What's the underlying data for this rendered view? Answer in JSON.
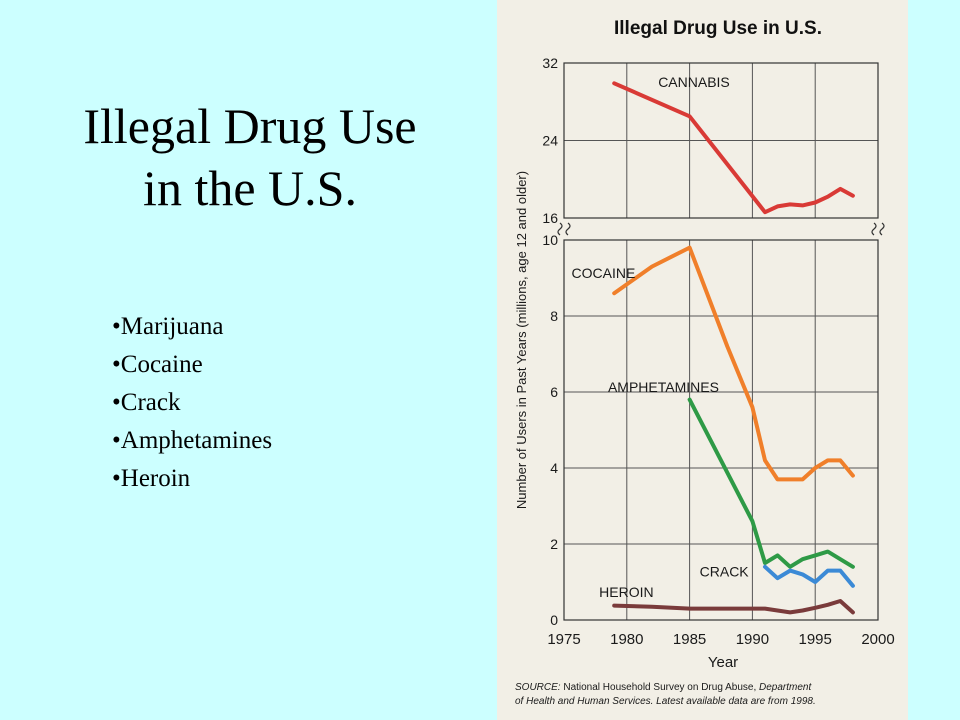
{
  "slide": {
    "title_line1": "Illegal Drug Use",
    "title_line2": "in the U.S.",
    "bullets": [
      "Marijuana",
      "Cocaine",
      "Crack",
      "Amphetamines",
      "Heroin"
    ]
  },
  "chart_data": {
    "type": "line",
    "title": "Illegal Drug Use in U.S.",
    "xlabel": "Year",
    "ylabel": "Number of Users in Past Years (millions, age 12 and older)",
    "x_ticks": [
      1975,
      1980,
      1985,
      1990,
      1995,
      2000
    ],
    "xlim": [
      1975,
      2000
    ],
    "upper_panel": {
      "ylim": [
        16,
        32
      ],
      "y_ticks": [
        16,
        24,
        32
      ],
      "series": [
        {
          "name": "CANNABIS",
          "color": "#d93a36",
          "x": [
            1979,
            1985,
            1991,
            1992,
            1993,
            1994,
            1995,
            1996,
            1997,
            1998
          ],
          "y": [
            29.9,
            26.5,
            16.6,
            17.2,
            17.4,
            17.3,
            17.6,
            18.2,
            19.0,
            18.3
          ]
        }
      ]
    },
    "lower_panel": {
      "ylim": [
        0,
        10
      ],
      "y_ticks": [
        0,
        2,
        4,
        6,
        8,
        10
      ],
      "series": [
        {
          "name": "COCAINE",
          "color": "#f07f2a",
          "x": [
            1979,
            1982,
            1985,
            1988,
            1990,
            1991,
            1992,
            1993,
            1994,
            1995,
            1996,
            1997,
            1998
          ],
          "y": [
            8.6,
            9.3,
            9.8,
            7.2,
            5.6,
            4.2,
            3.7,
            3.7,
            3.7,
            4.0,
            4.2,
            4.2,
            3.8
          ]
        },
        {
          "name": "AMPHETAMINES",
          "color": "#2e9a46",
          "x": [
            1985,
            1990,
            1991,
            1992,
            1993,
            1994,
            1995,
            1996,
            1997,
            1998
          ],
          "y": [
            5.8,
            2.6,
            1.5,
            1.7,
            1.4,
            1.6,
            1.7,
            1.8,
            1.6,
            1.4
          ]
        },
        {
          "name": "CRACK",
          "color": "#3b8ad6",
          "x": [
            1991,
            1992,
            1993,
            1994,
            1995,
            1996,
            1997,
            1998
          ],
          "y": [
            1.4,
            1.1,
            1.3,
            1.2,
            1.0,
            1.3,
            1.3,
            0.9
          ]
        },
        {
          "name": "HEROIN",
          "color": "#7a3b3b",
          "x": [
            1979,
            1982,
            1985,
            1988,
            1991,
            1992,
            1993,
            1994,
            1995,
            1996,
            1997,
            1998
          ],
          "y": [
            0.38,
            0.35,
            0.3,
            0.3,
            0.3,
            0.25,
            0.2,
            0.25,
            0.32,
            0.4,
            0.5,
            0.2
          ]
        }
      ]
    },
    "label_placement": {
      "CANNABIS": "upper",
      "COCAINE": "upper-left",
      "AMPHETAMINES": "upper",
      "CRACK": "right",
      "HEROIN": "above"
    },
    "source_line1_prefix": "SOURCE:",
    "source_line1": " National Household Survey on Drug Abuse, ",
    "source_line1_italic": "Department",
    "source_line2": "of Health and Human Services. Latest available data are from 1998."
  }
}
